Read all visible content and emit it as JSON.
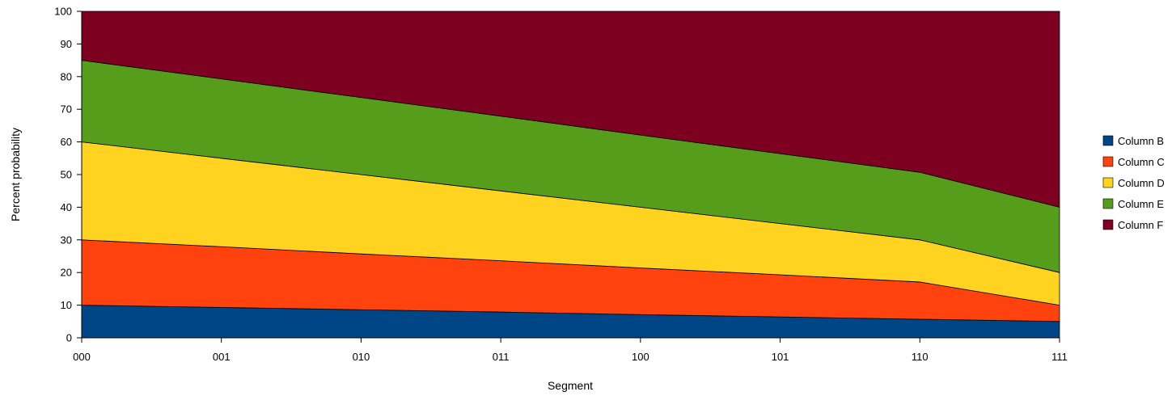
{
  "chart_data": {
    "type": "area",
    "stacked": true,
    "title": "",
    "xlabel": "Segment",
    "ylabel": "Percent probability",
    "categories": [
      "000",
      "001",
      "010",
      "011",
      "100",
      "101",
      "110",
      "111"
    ],
    "ylim": [
      0,
      100
    ],
    "yticks": [
      0,
      10,
      20,
      30,
      40,
      50,
      60,
      70,
      80,
      90,
      100
    ],
    "grid": false,
    "legend_position": "right",
    "series": [
      {
        "name": "Column B",
        "color": "#004586",
        "values": [
          10,
          9.3,
          8.6,
          7.9,
          7.1,
          6.4,
          5.7,
          5
        ]
      },
      {
        "name": "Column C",
        "color": "#ff420e",
        "values": [
          20,
          18.6,
          17.1,
          15.7,
          14.3,
          12.9,
          11.4,
          5
        ]
      },
      {
        "name": "Column D",
        "color": "#ffd320",
        "values": [
          30,
          27.1,
          24.3,
          21.4,
          18.6,
          15.7,
          12.9,
          10
        ]
      },
      {
        "name": "Column E",
        "color": "#579d1c",
        "values": [
          25,
          24.3,
          23.6,
          22.9,
          22.1,
          21.4,
          20.7,
          20
        ]
      },
      {
        "name": "Column F",
        "color": "#7e0021",
        "values": [
          15,
          20.7,
          26.4,
          32.1,
          37.9,
          43.6,
          49.3,
          60
        ]
      }
    ]
  }
}
